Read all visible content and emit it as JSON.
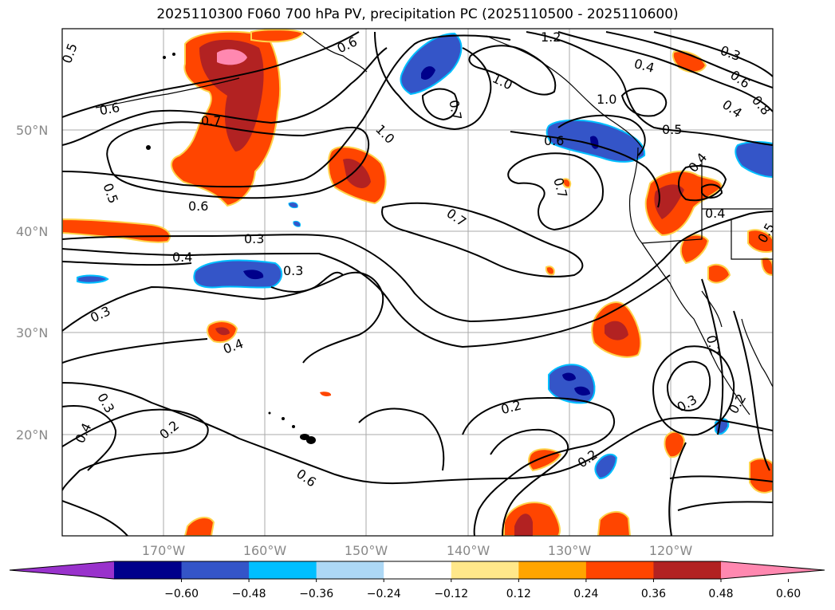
{
  "title": "2025110300 F060 700 hPa PV, precipitation PC (2025110500 - 2025110600)",
  "map": {
    "lat_labels": [
      "50°N",
      "40°N",
      "30°N",
      "20°N"
    ],
    "lon_labels": [
      "170°W",
      "160°W",
      "150°W",
      "140°W",
      "130°W",
      "120°W"
    ],
    "contour_labels": [
      "0.5",
      "0.6",
      "0.7",
      "0.6",
      "0.6",
      "0.5",
      "0.4",
      "0.3",
      "0.3",
      "0.4",
      "0.3",
      "0.4",
      "0.3",
      "0.2",
      "0.6",
      "1.0",
      "0.7",
      "1.0",
      "1.2",
      "1.0",
      "0.5",
      "0.4",
      "0.3",
      "0.6",
      "0.4",
      "0.8",
      "0.6",
      "0.7",
      "0.7",
      "0.4",
      "0.4",
      "0.5",
      "0.2",
      "0.3",
      "0.2",
      "0.2",
      "0.2"
    ]
  },
  "colorbar": {
    "ticks": [
      "−0.60",
      "−0.48",
      "−0.36",
      "−0.24",
      "−0.12",
      "0.12",
      "0.24",
      "0.36",
      "0.48",
      "0.60"
    ],
    "colors": [
      "#9932cc",
      "#00008b",
      "#3455c8",
      "#00bfff",
      "#add8f5",
      "#ffffff",
      "#ffe88a",
      "#ffa500",
      "#ff4500",
      "#b22222",
      "#ff88b0"
    ]
  }
}
